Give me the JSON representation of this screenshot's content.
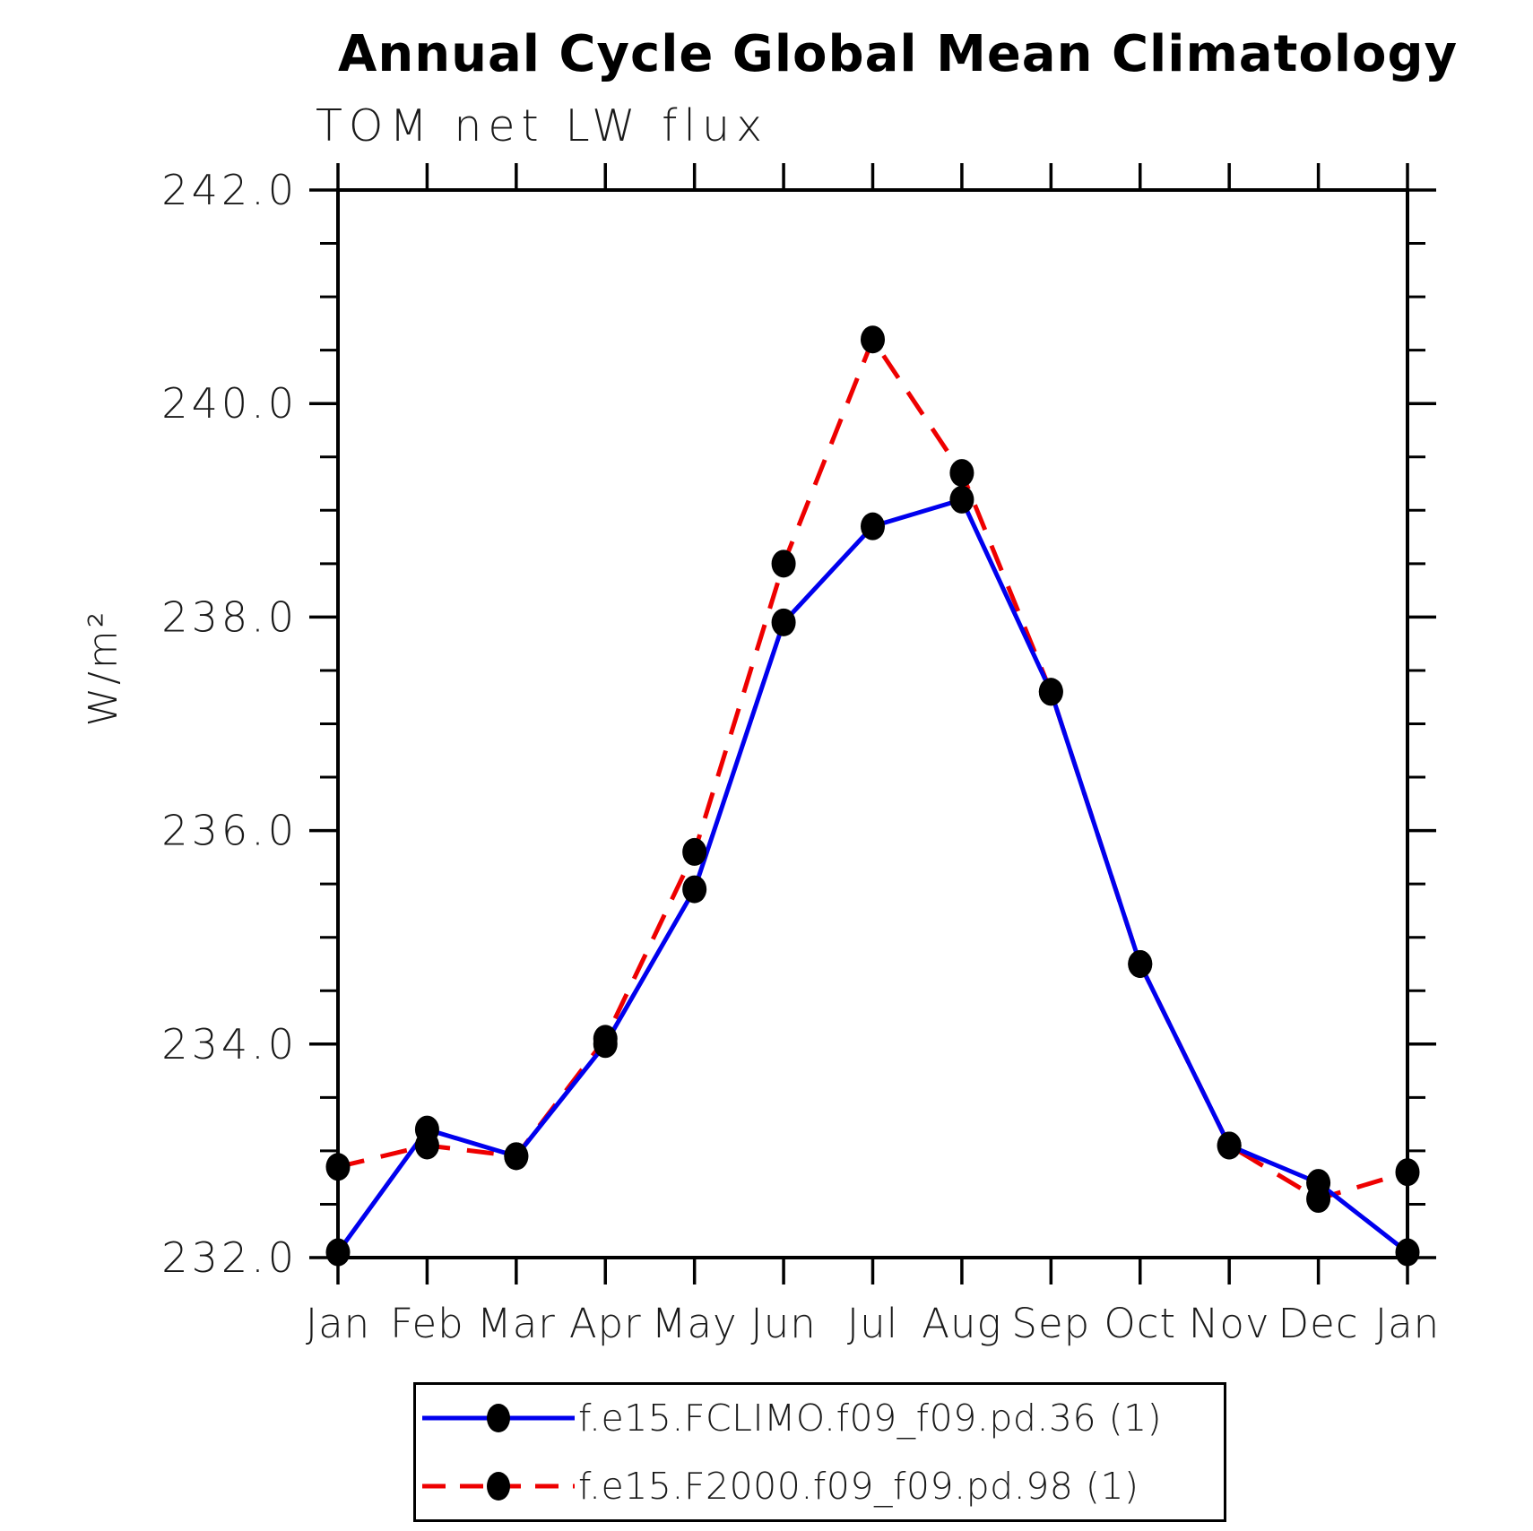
{
  "page": {
    "background": "#ffffff"
  },
  "chart_data": {
    "type": "line",
    "title": "Annual Cycle Global Mean Climatology",
    "subtitle": "TOM net LW flux",
    "ylabel": "W/m²",
    "x_categories": [
      "Jan",
      "Feb",
      "Mar",
      "Apr",
      "May",
      "Jun",
      "Jul",
      "Aug",
      "Sep",
      "Oct",
      "Nov",
      "Dec",
      "Jan"
    ],
    "ylim": [
      232.0,
      242.0
    ],
    "ytick_interval": 2.0,
    "ytick_labels": [
      "232.0",
      "234.0",
      "236.0",
      "238.0",
      "240.0",
      "242.0"
    ],
    "minor_tick_interval": 0.5,
    "grid": "off",
    "legend_position": "bottom-center",
    "axis_color": "#000000",
    "marker_color": "#000000",
    "series": [
      {
        "name": "f.e15.FCLIMO.f09_f09.pd.36 (1)",
        "color": "#0000ee",
        "line_style": "solid",
        "marker": "circle",
        "values": [
          232.05,
          233.2,
          232.95,
          234.0,
          235.45,
          237.95,
          238.85,
          239.1,
          237.3,
          234.75,
          233.05,
          232.7,
          232.05
        ]
      },
      {
        "name": "f.e15.F2000.f09_f09.pd.98 (1)",
        "color": "#ee0000",
        "line_style": "dashed",
        "marker": "circle",
        "values": [
          232.85,
          233.05,
          232.95,
          234.05,
          235.8,
          238.5,
          240.6,
          239.35,
          237.3,
          234.75,
          233.05,
          232.55,
          232.8
        ]
      }
    ]
  }
}
